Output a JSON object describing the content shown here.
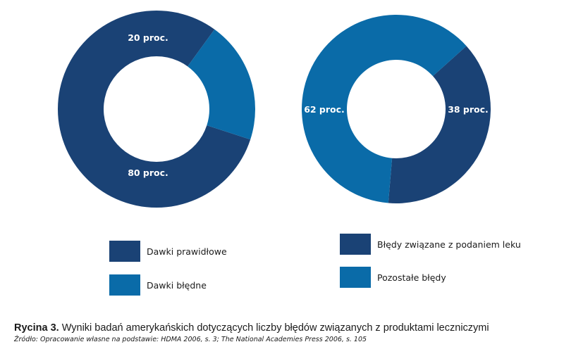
{
  "colors": {
    "dark_blue": "#1a4275",
    "light_blue": "#0a6ba8"
  },
  "chart_data": [
    {
      "type": "pie",
      "title": "",
      "slices": [
        {
          "name": "Dawki prawidłowe",
          "value": 80,
          "label": "80 proc.",
          "color": "#1a4275"
        },
        {
          "name": "Dawki błędne",
          "value": 20,
          "label": "20 proc.",
          "color": "#0a6ba8"
        }
      ],
      "legend_placement": "bottom"
    },
    {
      "type": "pie",
      "title": "",
      "slices": [
        {
          "name": "Błędy związane z podaniem leku",
          "value": 38,
          "label": "38 proc.",
          "color": "#1a4275"
        },
        {
          "name": "Pozostałe błędy",
          "value": 62,
          "label": "62 proc.",
          "color": "#0a6ba8"
        }
      ],
      "legend_placement": "bottom"
    }
  ],
  "caption": {
    "label": "Rycina 3.",
    "text": " Wyniki badań amerykańskich dotyczących liczby błędów związanych z produktami leczniczymi",
    "source": "Źródło: Opracowanie własne na podstawie: HDMA 2006, s. 3; The National Academies Press 2006, s. 105"
  }
}
